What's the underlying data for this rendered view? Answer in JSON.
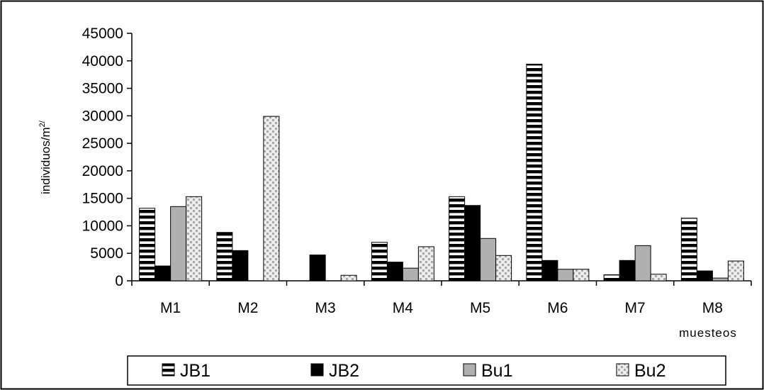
{
  "chart_data": {
    "type": "bar",
    "categories": [
      "M1",
      "M2",
      "M3",
      "M4",
      "M5",
      "M6",
      "M7",
      "M8"
    ],
    "series": [
      {
        "name": "JB1",
        "values": [
          13200,
          8800,
          0,
          7000,
          15300,
          39400,
          1100,
          11400
        ]
      },
      {
        "name": "JB2",
        "values": [
          2700,
          5500,
          4700,
          3400,
          13700,
          3700,
          3700,
          1800
        ]
      },
      {
        "name": "Bu1",
        "values": [
          13500,
          0,
          0,
          2300,
          7700,
          2100,
          6400,
          500
        ]
      },
      {
        "name": "Bu2",
        "values": [
          15300,
          29900,
          1000,
          6200,
          4600,
          2100,
          1200,
          3600
        ]
      }
    ],
    "yticks": [
      "0",
      "5000",
      "10000",
      "15000",
      "20000",
      "25000",
      "30000",
      "35000",
      "40000",
      "45000"
    ],
    "ylim": [
      0,
      45000
    ],
    "ylabel": "individuos/m",
    "ylabel_superscript": "2/",
    "xlabel": "muesteos",
    "title": "",
    "grid": false,
    "legend_position": "bottom",
    "colors": {
      "JB1": "#000000",
      "JB2": "#000000",
      "Bu1": "#b0b0b0",
      "Bu2": "#dedede"
    },
    "patterns": {
      "JB1": "horizontal-stripes",
      "JB2": "solid",
      "Bu1": "solid",
      "Bu2": "dotted"
    }
  }
}
